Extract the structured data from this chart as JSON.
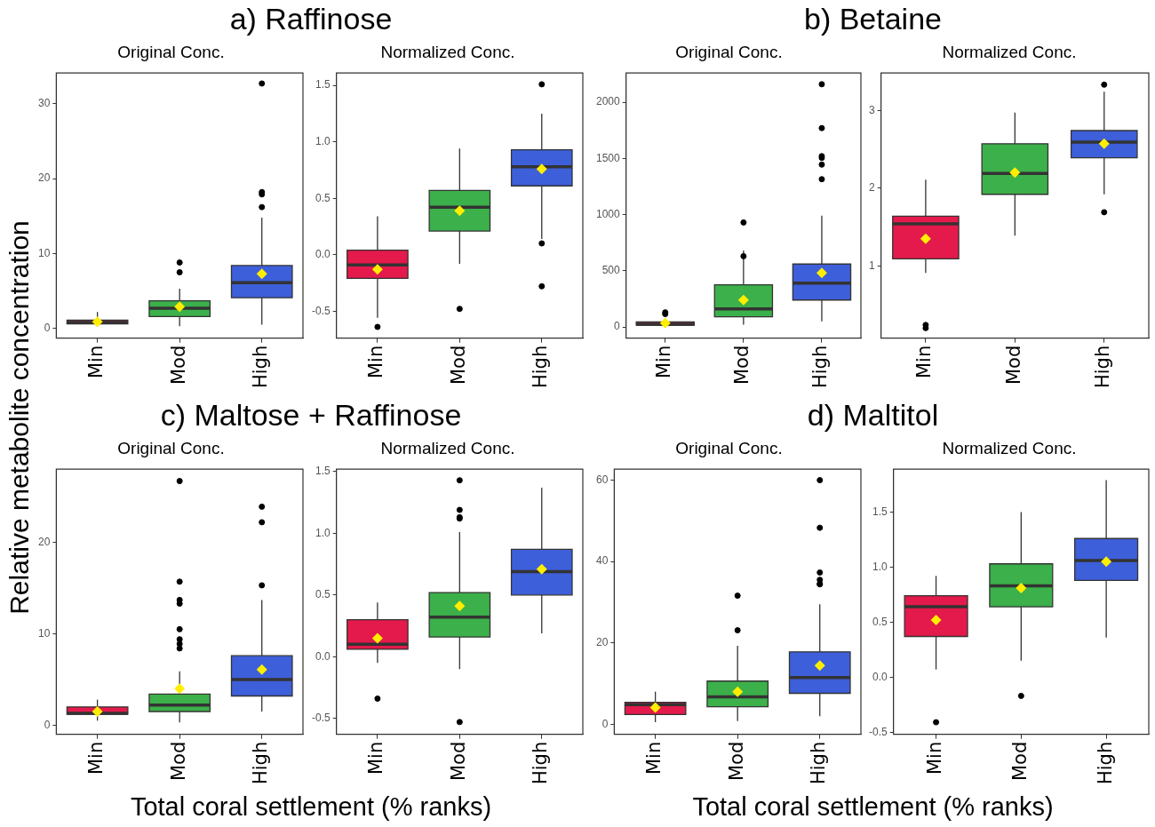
{
  "chart_data": [
    {
      "type": "box",
      "title": "a)  Raffinose",
      "subtitle": "Original Conc.",
      "ylabel": "Relative metabolite concentration",
      "categories": [
        "Min",
        "Mod",
        "High"
      ],
      "colors": [
        "#e31a4b",
        "#3cb04a",
        "#3d5fd9"
      ],
      "ylim": [
        -1.3,
        34.1
      ],
      "yticks": [
        0,
        10,
        20,
        30
      ],
      "boxes": [
        {
          "low": 0.3,
          "q1": 0.6,
          "median": 0.8,
          "q3": 1.1,
          "high": 2.2,
          "mean": 0.9
        },
        {
          "low": 0.3,
          "q1": 1.6,
          "median": 2.7,
          "q3": 3.7,
          "high": 5.3,
          "mean": 2.9,
          "outliers": [
            7.5,
            8.8
          ]
        },
        {
          "low": 0.5,
          "q1": 4.1,
          "median": 6.1,
          "q3": 8.4,
          "high": 14.8,
          "mean": 7.3,
          "outliers": [
            32.7,
            18.2,
            17.9,
            16.2
          ]
        }
      ]
    },
    {
      "type": "box",
      "subtitle": "Normalized Conc.",
      "categories": [
        "Min",
        "Mod",
        "High"
      ],
      "colors": [
        "#e31a4b",
        "#3cb04a",
        "#3d5fd9"
      ],
      "ylim": [
        -0.74,
        1.61
      ],
      "yticks": [
        {
          "value": -0.5,
          "label": "-0.5"
        },
        {
          "value": 0,
          "label": "0.0"
        },
        {
          "value": 0.5,
          "label": "0.5"
        },
        {
          "value": 1,
          "label": "1.0"
        },
        {
          "value": 1.5,
          "label": "1.5"
        }
      ],
      "boxes": [
        {
          "low": -0.56,
          "q1": -0.21,
          "median": -0.09,
          "q3": 0.04,
          "high": 0.34,
          "mean": -0.13,
          "outliers": [
            -0.64
          ]
        },
        {
          "low": -0.08,
          "q1": 0.21,
          "median": 0.42,
          "q3": 0.57,
          "high": 0.94,
          "mean": 0.39,
          "outliers": [
            -0.48
          ]
        },
        {
          "low": 0.14,
          "q1": 0.61,
          "median": 0.78,
          "q3": 0.93,
          "high": 1.25,
          "mean": 0.76,
          "outliers": [
            1.51,
            0.1,
            -0.28
          ]
        }
      ]
    },
    {
      "type": "box",
      "title": "b)  Betaine",
      "subtitle": "Original Conc.",
      "categories": [
        "Min",
        "Mod",
        "High"
      ],
      "colors": [
        "#e31a4b",
        "#3cb04a",
        "#3d5fd9"
      ],
      "ylim": [
        -100,
        2260
      ],
      "yticks": [
        0,
        500,
        1000,
        1500,
        2000
      ],
      "boxes": [
        {
          "low": 0,
          "q1": 15,
          "median": 25,
          "q3": 45,
          "high": 50,
          "mean": 35,
          "outliers": [
            130,
            115
          ]
        },
        {
          "low": 20,
          "q1": 90,
          "median": 160,
          "q3": 375,
          "high": 680,
          "mean": 240,
          "outliers": [
            930,
            630
          ]
        },
        {
          "low": 50,
          "q1": 240,
          "median": 390,
          "q3": 560,
          "high": 990,
          "mean": 480,
          "outliers": [
            2160,
            1770,
            1520,
            1505,
            1445,
            1315
          ]
        }
      ]
    },
    {
      "type": "box",
      "subtitle": "Normalized Conc.",
      "categories": [
        "Min",
        "Mod",
        "High"
      ],
      "colors": [
        "#e31a4b",
        "#3cb04a",
        "#3d5fd9"
      ],
      "ylim": [
        0.07,
        3.48
      ],
      "yticks": [
        1,
        2,
        3
      ],
      "boxes": [
        {
          "low": 0.91,
          "q1": 1.09,
          "median": 1.54,
          "q3": 1.64,
          "high": 2.11,
          "mean": 1.35,
          "outliers": [
            0.2,
            0.24
          ]
        },
        {
          "low": 1.39,
          "q1": 1.92,
          "median": 2.19,
          "q3": 2.57,
          "high": 2.97,
          "mean": 2.2
        },
        {
          "low": 1.92,
          "q1": 2.39,
          "median": 2.59,
          "q3": 2.74,
          "high": 3.24,
          "mean": 2.57,
          "outliers": [
            3.33,
            1.69
          ]
        }
      ]
    },
    {
      "type": "box",
      "title": "c)  Maltose + Raffinose",
      "subtitle": "Original Conc.",
      "xlabel": "Total coral settlement (% ranks)",
      "categories": [
        "Min",
        "Mod",
        "High"
      ],
      "colors": [
        "#e31a4b",
        "#3cb04a",
        "#3d5fd9"
      ],
      "ylim": [
        -1,
        28
      ],
      "yticks": [
        0,
        10,
        20
      ],
      "boxes": [
        {
          "low": 0.5,
          "q1": 1.2,
          "median": 1.3,
          "q3": 2.0,
          "high": 2.8,
          "mean": 1.5
        },
        {
          "low": 0.3,
          "q1": 1.5,
          "median": 2.2,
          "q3": 3.4,
          "high": 5.9,
          "mean": 4.0,
          "outliers": [
            26.7,
            15.7,
            13.7,
            13.3,
            10.5,
            9.4,
            8.9,
            8.4
          ]
        },
        {
          "low": 1.5,
          "q1": 3.2,
          "median": 5.0,
          "q3": 7.6,
          "high": 13.7,
          "mean": 6.1,
          "outliers": [
            23.9,
            22.2,
            15.3
          ]
        }
      ]
    },
    {
      "type": "box",
      "subtitle": "Normalized Conc.",
      "categories": [
        "Min",
        "Mod",
        "High"
      ],
      "colors": [
        "#e31a4b",
        "#3cb04a",
        "#3d5fd9"
      ],
      "ylim": [
        -0.63,
        1.52
      ],
      "yticks": [
        {
          "value": -0.5,
          "label": "-0.5"
        },
        {
          "value": 0,
          "label": "0.0"
        },
        {
          "value": 0.5,
          "label": "0.5"
        },
        {
          "value": 1,
          "label": "1.0"
        },
        {
          "value": 1.5,
          "label": "1.5"
        }
      ],
      "boxes": [
        {
          "low": -0.05,
          "q1": 0.06,
          "median": 0.1,
          "q3": 0.3,
          "high": 0.44,
          "mean": 0.15,
          "outliers": [
            -0.34
          ]
        },
        {
          "low": -0.1,
          "q1": 0.16,
          "median": 0.32,
          "q3": 0.52,
          "high": 1.01,
          "mean": 0.41,
          "outliers": [
            1.43,
            1.19,
            1.13,
            1.12,
            -0.53
          ]
        },
        {
          "low": 0.19,
          "q1": 0.5,
          "median": 0.69,
          "q3": 0.87,
          "high": 1.37,
          "mean": 0.71
        }
      ]
    },
    {
      "type": "box",
      "title": "d)  Maltitol",
      "subtitle": "Original Conc.",
      "xlabel": "Total coral settlement (% ranks)",
      "categories": [
        "Min",
        "Mod",
        "High"
      ],
      "colors": [
        "#e31a4b",
        "#3cb04a",
        "#3d5fd9"
      ],
      "ylim": [
        -2.5,
        62.7
      ],
      "yticks": [
        0,
        20,
        40,
        60
      ],
      "boxes": [
        {
          "low": 0.5,
          "q1": 2.4,
          "median": 4.8,
          "q3": 5.4,
          "high": 8.0,
          "mean": 4.1
        },
        {
          "low": 0.8,
          "q1": 4.3,
          "median": 6.7,
          "q3": 10.6,
          "high": 19.3,
          "mean": 8.0,
          "outliers": [
            31.6,
            23.1
          ]
        },
        {
          "low": 2.0,
          "q1": 7.6,
          "median": 11.5,
          "q3": 17.8,
          "high": 29.5,
          "mean": 14.4,
          "outliers": [
            60,
            48.3,
            37.3,
            35.5,
            34.5,
            34.4
          ]
        }
      ]
    },
    {
      "type": "box",
      "subtitle": "Normalized Conc.",
      "categories": [
        "Min",
        "Mod",
        "High"
      ],
      "colors": [
        "#e31a4b",
        "#3cb04a",
        "#3d5fd9"
      ],
      "ylim": [
        -0.52,
        1.89
      ],
      "yticks": [
        {
          "value": -0.5,
          "label": "-0.5"
        },
        {
          "value": 0,
          "label": "0.0"
        },
        {
          "value": 0.5,
          "label": "0.5"
        },
        {
          "value": 1,
          "label": "1.0"
        },
        {
          "value": 1.5,
          "label": "1.5"
        }
      ],
      "boxes": [
        {
          "low": 0.07,
          "q1": 0.37,
          "median": 0.64,
          "q3": 0.74,
          "high": 0.92,
          "mean": 0.52,
          "outliers": [
            -0.41
          ]
        },
        {
          "low": 0.15,
          "q1": 0.64,
          "median": 0.83,
          "q3": 1.03,
          "high": 1.5,
          "mean": 0.81,
          "outliers": [
            -0.17
          ]
        },
        {
          "low": 0.36,
          "q1": 0.88,
          "median": 1.06,
          "q3": 1.26,
          "high": 1.79,
          "mean": 1.05
        }
      ]
    }
  ]
}
